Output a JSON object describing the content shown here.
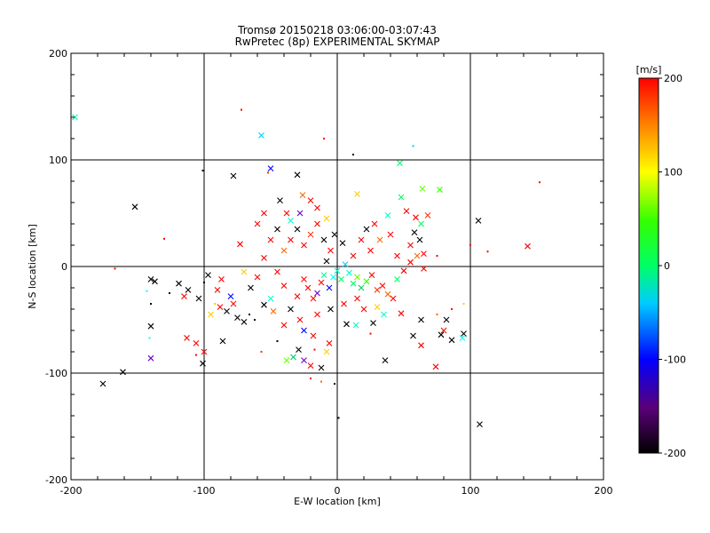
{
  "chart_data": {
    "type": "scatter",
    "title": "Tromsø 20150218 03:06:00-03:07:43",
    "subtitle": "RwPretec (8p) EXPERIMENTAL SKYMAP",
    "xlabel": "E-W location [km]",
    "ylabel": "N-S location [km]",
    "xlim": [
      -200,
      200
    ],
    "ylim": [
      -200,
      200
    ],
    "xticks": [
      "-200",
      "-100",
      "0",
      "100",
      "200"
    ],
    "yticks": [
      "-200",
      "-100",
      "0",
      "100",
      "200"
    ],
    "grid": "crosshair lines at ±100 and 0",
    "colorbar": {
      "label": "[m/s]",
      "range": [
        -200,
        200
      ],
      "ticks": [
        "-200",
        "-100",
        "0",
        "100",
        "200"
      ],
      "colormap": "black-purple-blue-cyan-green-yellow-red"
    },
    "points": [
      {
        "x": -197,
        "y": 140,
        "m": "x",
        "c": "#00ff99"
      },
      {
        "x": -57,
        "y": 123,
        "m": "x",
        "c": "#00ccff"
      },
      {
        "x": -72,
        "y": 147,
        "m": "dot",
        "c": "#ff0000"
      },
      {
        "x": 57,
        "y": 113,
        "m": "dot",
        "c": "#00ccff"
      },
      {
        "x": -50,
        "y": 92,
        "m": "x",
        "c": "#0000ff"
      },
      {
        "x": -30,
        "y": 86,
        "m": "x",
        "c": "#000000"
      },
      {
        "x": -78,
        "y": 85,
        "m": "x",
        "c": "#000000"
      },
      {
        "x": -101,
        "y": 90,
        "m": "dot",
        "c": "#000000"
      },
      {
        "x": -52,
        "y": 88,
        "m": "dot",
        "c": "#ff3300"
      },
      {
        "x": -10,
        "y": 120,
        "m": "dot",
        "c": "#ff0000"
      },
      {
        "x": 47,
        "y": 97,
        "m": "x",
        "c": "#00ff66"
      },
      {
        "x": 152,
        "y": 79,
        "m": "dot",
        "c": "#ff0000"
      },
      {
        "x": -152,
        "y": 56,
        "m": "x",
        "c": "#000000"
      },
      {
        "x": -43,
        "y": 62,
        "m": "x",
        "c": "#000000"
      },
      {
        "x": -26,
        "y": 67,
        "m": "x",
        "c": "#ff6600"
      },
      {
        "x": 15,
        "y": 68,
        "m": "x",
        "c": "#ffcc00"
      },
      {
        "x": 48,
        "y": 65,
        "m": "x",
        "c": "#00ff66"
      },
      {
        "x": 64,
        "y": 73,
        "m": "x",
        "c": "#66ff00"
      },
      {
        "x": 77,
        "y": 72,
        "m": "x",
        "c": "#33ff00"
      },
      {
        "x": 12,
        "y": 105,
        "m": "dot",
        "c": "#000000"
      },
      {
        "x": 106,
        "y": 43,
        "m": "x",
        "c": "#000000"
      },
      {
        "x": 143,
        "y": 19,
        "m": "x",
        "c": "#ff0000"
      },
      {
        "x": 113,
        "y": 14,
        "m": "dot",
        "c": "#ff0000"
      },
      {
        "x": -130,
        "y": 26,
        "m": "dot",
        "c": "#ff0000"
      },
      {
        "x": -73,
        "y": 21,
        "m": "x",
        "c": "#ff0000"
      },
      {
        "x": -167,
        "y": -2,
        "m": "dot",
        "c": "#ff0000"
      },
      {
        "x": -140,
        "y": -12,
        "m": "x",
        "c": "#000000"
      },
      {
        "x": -137,
        "y": -14,
        "m": "x",
        "c": "#000000"
      },
      {
        "x": -119,
        "y": -16,
        "m": "x",
        "c": "#000000"
      },
      {
        "x": -112,
        "y": -22,
        "m": "x",
        "c": "#000000"
      },
      {
        "x": -104,
        "y": -30,
        "m": "x",
        "c": "#000000"
      },
      {
        "x": -97,
        "y": -8,
        "m": "x",
        "c": "#000000"
      },
      {
        "x": -87,
        "y": -12,
        "m": "x",
        "c": "#ff0000"
      },
      {
        "x": -100,
        "y": -15,
        "m": "dot",
        "c": "#000000"
      },
      {
        "x": -126,
        "y": -25,
        "m": "dot",
        "c": "#000000"
      },
      {
        "x": -140,
        "y": -35,
        "m": "dot",
        "c": "#000000"
      },
      {
        "x": -143,
        "y": -23,
        "m": "dot",
        "c": "#00ffff"
      },
      {
        "x": -92,
        "y": -35,
        "m": "dot",
        "c": "#ffcc00"
      },
      {
        "x": -80,
        "y": -28,
        "m": "x",
        "c": "#0000ff"
      },
      {
        "x": -83,
        "y": -42,
        "m": "x",
        "c": "#000000"
      },
      {
        "x": -88,
        "y": -38,
        "m": "x",
        "c": "#ff0000"
      },
      {
        "x": -75,
        "y": -48,
        "m": "x",
        "c": "#000000"
      },
      {
        "x": -70,
        "y": -52,
        "m": "x",
        "c": "#000000"
      },
      {
        "x": -66,
        "y": -45,
        "m": "dot",
        "c": "#000000"
      },
      {
        "x": -62,
        "y": -50,
        "m": "dot",
        "c": "#000000"
      },
      {
        "x": -55,
        "y": -36,
        "m": "x",
        "c": "#000000"
      },
      {
        "x": -140,
        "y": -56,
        "m": "x",
        "c": "#000000"
      },
      {
        "x": -141,
        "y": -67,
        "m": "dot",
        "c": "#00ffff"
      },
      {
        "x": -113,
        "y": -67,
        "m": "x",
        "c": "#ff0000"
      },
      {
        "x": -106,
        "y": -72,
        "m": "x",
        "c": "#ff0000"
      },
      {
        "x": -86,
        "y": -70,
        "m": "x",
        "c": "#000000"
      },
      {
        "x": -100,
        "y": -80,
        "m": "x",
        "c": "#ff0000"
      },
      {
        "x": -140,
        "y": -86,
        "m": "x",
        "c": "#6600cc"
      },
      {
        "x": -101,
        "y": -91,
        "m": "x",
        "c": "#000000"
      },
      {
        "x": -161,
        "y": -99,
        "m": "x",
        "c": "#000000"
      },
      {
        "x": -176,
        "y": -110,
        "m": "x",
        "c": "#000000"
      },
      {
        "x": -106,
        "y": -83,
        "m": "dot",
        "c": "#ff0000"
      },
      {
        "x": -57,
        "y": -80,
        "m": "dot",
        "c": "#ff3300"
      },
      {
        "x": -45,
        "y": -70,
        "m": "dot",
        "c": "#000000"
      },
      {
        "x": -38,
        "y": -88,
        "m": "x",
        "c": "#66ff00"
      },
      {
        "x": -33,
        "y": -85,
        "m": "x",
        "c": "#00cc66"
      },
      {
        "x": -29,
        "y": -78,
        "m": "x",
        "c": "#000000"
      },
      {
        "x": -25,
        "y": -88,
        "m": "x",
        "c": "#6600cc"
      },
      {
        "x": -20,
        "y": -93,
        "m": "x",
        "c": "#ff0000"
      },
      {
        "x": -17,
        "y": -78,
        "m": "dot",
        "c": "#ff0000"
      },
      {
        "x": -12,
        "y": -95,
        "m": "x",
        "c": "#000000"
      },
      {
        "x": -8,
        "y": -80,
        "m": "x",
        "c": "#ffcc00"
      },
      {
        "x": -20,
        "y": -105,
        "m": "dot",
        "c": "#ff0000"
      },
      {
        "x": -2,
        "y": -110,
        "m": "dot",
        "c": "#000000"
      },
      {
        "x": 1,
        "y": -142,
        "m": "dot",
        "c": "#000000"
      },
      {
        "x": -12,
        "y": -108,
        "m": "dot",
        "c": "#ff6600"
      },
      {
        "x": -6,
        "y": -72,
        "m": "x",
        "c": "#ff0000"
      },
      {
        "x": 7,
        "y": -54,
        "m": "x",
        "c": "#000000"
      },
      {
        "x": 14,
        "y": -55,
        "m": "x",
        "c": "#00ffcc"
      },
      {
        "x": 25,
        "y": -63,
        "m": "dot",
        "c": "#ff0000"
      },
      {
        "x": 27,
        "y": -53,
        "m": "x",
        "c": "#000000"
      },
      {
        "x": 36,
        "y": -88,
        "m": "x",
        "c": "#000000"
      },
      {
        "x": 57,
        "y": -65,
        "m": "x",
        "c": "#000000"
      },
      {
        "x": 63,
        "y": -74,
        "m": "x",
        "c": "#ff0000"
      },
      {
        "x": 74,
        "y": -94,
        "m": "x",
        "c": "#ff0000"
      },
      {
        "x": 78,
        "y": -64,
        "m": "x",
        "c": "#000000"
      },
      {
        "x": 80,
        "y": -60,
        "m": "x",
        "c": "#ff0000"
      },
      {
        "x": 86,
        "y": -69,
        "m": "x",
        "c": "#000000"
      },
      {
        "x": 95,
        "y": -63,
        "m": "x",
        "c": "#000000"
      },
      {
        "x": 94,
        "y": -67,
        "m": "x",
        "c": "#00ffff"
      },
      {
        "x": 107,
        "y": -148,
        "m": "x",
        "c": "#000000"
      },
      {
        "x": 86,
        "y": -40,
        "m": "dot",
        "c": "#ff0000"
      },
      {
        "x": 82,
        "y": -50,
        "m": "x",
        "c": "#000000"
      },
      {
        "x": 63,
        "y": -50,
        "m": "x",
        "c": "#000000"
      },
      {
        "x": 75,
        "y": -45,
        "m": "dot",
        "c": "#ff6600"
      },
      {
        "x": 48,
        "y": -44,
        "m": "x",
        "c": "#ff0000"
      },
      {
        "x": 95,
        "y": -35,
        "m": "dot",
        "c": "#ffcc00"
      },
      {
        "x": 75,
        "y": 10,
        "m": "dot",
        "c": "#ff0000"
      },
      {
        "x": 100,
        "y": 20,
        "m": "dot",
        "c": "#ff0000"
      },
      {
        "x": -50,
        "y": -30,
        "m": "x",
        "c": "#00ffcc"
      },
      {
        "x": -40,
        "y": -18,
        "m": "x",
        "c": "#ff0000"
      },
      {
        "x": -35,
        "y": -40,
        "m": "x",
        "c": "#000000"
      },
      {
        "x": -30,
        "y": -28,
        "m": "x",
        "c": "#ff0000"
      },
      {
        "x": -25,
        "y": -12,
        "m": "x",
        "c": "#ff0000"
      },
      {
        "x": -22,
        "y": -20,
        "m": "x",
        "c": "#ff0000"
      },
      {
        "x": -18,
        "y": -30,
        "m": "x",
        "c": "#ff0000"
      },
      {
        "x": -15,
        "y": -25,
        "m": "x",
        "c": "#6600cc"
      },
      {
        "x": -12,
        "y": -15,
        "m": "x",
        "c": "#ff0000"
      },
      {
        "x": -10,
        "y": -8,
        "m": "x",
        "c": "#00ff99"
      },
      {
        "x": -8,
        "y": 5,
        "m": "x",
        "c": "#000000"
      },
      {
        "x": -6,
        "y": -20,
        "m": "x",
        "c": "#0000ff"
      },
      {
        "x": -3,
        "y": -10,
        "m": "x",
        "c": "#00ffff"
      },
      {
        "x": 0,
        "y": -4,
        "m": "x",
        "c": "#00ffcc"
      },
      {
        "x": 3,
        "y": -12,
        "m": "x",
        "c": "#00ff66"
      },
      {
        "x": 6,
        "y": 2,
        "m": "x",
        "c": "#00ccff"
      },
      {
        "x": 9,
        "y": -6,
        "m": "x",
        "c": "#00ffcc"
      },
      {
        "x": 12,
        "y": -16,
        "m": "x",
        "c": "#00ff66"
      },
      {
        "x": 15,
        "y": -10,
        "m": "x",
        "c": "#66ff00"
      },
      {
        "x": 18,
        "y": -20,
        "m": "x",
        "c": "#00cc66"
      },
      {
        "x": 22,
        "y": -14,
        "m": "x",
        "c": "#33ff00"
      },
      {
        "x": 26,
        "y": -8,
        "m": "x",
        "c": "#ff0000"
      },
      {
        "x": 30,
        "y": -22,
        "m": "x",
        "c": "#ff3300"
      },
      {
        "x": 34,
        "y": -18,
        "m": "x",
        "c": "#ff0000"
      },
      {
        "x": 38,
        "y": -26,
        "m": "x",
        "c": "#ff6600"
      },
      {
        "x": 42,
        "y": -30,
        "m": "x",
        "c": "#ff0000"
      },
      {
        "x": 45,
        "y": -12,
        "m": "x",
        "c": "#00ff66"
      },
      {
        "x": 50,
        "y": -4,
        "m": "x",
        "c": "#ff0000"
      },
      {
        "x": 55,
        "y": 4,
        "m": "x",
        "c": "#ff0000"
      },
      {
        "x": 60,
        "y": 10,
        "m": "x",
        "c": "#ff6600"
      },
      {
        "x": 65,
        "y": -2,
        "m": "x",
        "c": "#ff0000"
      },
      {
        "x": -60,
        "y": -10,
        "m": "x",
        "c": "#ff0000"
      },
      {
        "x": -65,
        "y": -20,
        "m": "x",
        "c": "#000000"
      },
      {
        "x": -70,
        "y": -5,
        "m": "x",
        "c": "#ffcc00"
      },
      {
        "x": -45,
        "y": -5,
        "m": "x",
        "c": "#ff0000"
      },
      {
        "x": -55,
        "y": 8,
        "m": "x",
        "c": "#ff0000"
      },
      {
        "x": -40,
        "y": 15,
        "m": "x",
        "c": "#ff6600"
      },
      {
        "x": -35,
        "y": 25,
        "m": "x",
        "c": "#ff0000"
      },
      {
        "x": -30,
        "y": 35,
        "m": "x",
        "c": "#000000"
      },
      {
        "x": -25,
        "y": 20,
        "m": "x",
        "c": "#ff0000"
      },
      {
        "x": -20,
        "y": 30,
        "m": "x",
        "c": "#ff3300"
      },
      {
        "x": -15,
        "y": 40,
        "m": "x",
        "c": "#ff0000"
      },
      {
        "x": -10,
        "y": 25,
        "m": "x",
        "c": "#000000"
      },
      {
        "x": -5,
        "y": 15,
        "m": "x",
        "c": "#ff0000"
      },
      {
        "x": -2,
        "y": 30,
        "m": "x",
        "c": "#000000"
      },
      {
        "x": 4,
        "y": 22,
        "m": "x",
        "c": "#000000"
      },
      {
        "x": -35,
        "y": 43,
        "m": "x",
        "c": "#00ffcc"
      },
      {
        "x": -28,
        "y": 50,
        "m": "x",
        "c": "#6600cc"
      },
      {
        "x": -15,
        "y": 55,
        "m": "x",
        "c": "#ff0000"
      },
      {
        "x": -20,
        "y": 62,
        "m": "x",
        "c": "#ff0000"
      },
      {
        "x": -8,
        "y": 45,
        "m": "x",
        "c": "#ffcc00"
      },
      {
        "x": -38,
        "y": 50,
        "m": "x",
        "c": "#ff0000"
      },
      {
        "x": -45,
        "y": 35,
        "m": "x",
        "c": "#000000"
      },
      {
        "x": -60,
        "y": 40,
        "m": "x",
        "c": "#ff0000"
      },
      {
        "x": -50,
        "y": 25,
        "m": "x",
        "c": "#ff0000"
      },
      {
        "x": -55,
        "y": 50,
        "m": "x",
        "c": "#ff0000"
      },
      {
        "x": 38,
        "y": 48,
        "m": "x",
        "c": "#00ffcc"
      },
      {
        "x": 52,
        "y": 52,
        "m": "x",
        "c": "#ff0000"
      },
      {
        "x": 59,
        "y": 46,
        "m": "x",
        "c": "#ff0000"
      },
      {
        "x": 63,
        "y": 40,
        "m": "x",
        "c": "#00ff66"
      },
      {
        "x": 68,
        "y": 48,
        "m": "x",
        "c": "#ff3300"
      },
      {
        "x": 58,
        "y": 32,
        "m": "x",
        "c": "#000000"
      },
      {
        "x": 62,
        "y": 25,
        "m": "x",
        "c": "#000000"
      },
      {
        "x": 65,
        "y": 12,
        "m": "x",
        "c": "#ff0000"
      },
      {
        "x": 55,
        "y": 20,
        "m": "x",
        "c": "#ff0000"
      },
      {
        "x": 45,
        "y": 10,
        "m": "x",
        "c": "#ff0000"
      },
      {
        "x": 40,
        "y": 30,
        "m": "x",
        "c": "#ff0000"
      },
      {
        "x": 32,
        "y": 25,
        "m": "x",
        "c": "#ff6600"
      },
      {
        "x": 28,
        "y": 40,
        "m": "x",
        "c": "#ff0000"
      },
      {
        "x": 22,
        "y": 35,
        "m": "x",
        "c": "#000000"
      },
      {
        "x": 25,
        "y": 15,
        "m": "x",
        "c": "#ff0000"
      },
      {
        "x": 18,
        "y": 25,
        "m": "x",
        "c": "#ff0000"
      },
      {
        "x": 12,
        "y": 10,
        "m": "x",
        "c": "#ff0000"
      },
      {
        "x": 5,
        "y": -35,
        "m": "x",
        "c": "#ff0000"
      },
      {
        "x": -5,
        "y": -40,
        "m": "x",
        "c": "#000000"
      },
      {
        "x": -15,
        "y": -45,
        "m": "x",
        "c": "#ff0000"
      },
      {
        "x": -28,
        "y": -50,
        "m": "x",
        "c": "#ff0000"
      },
      {
        "x": -40,
        "y": -55,
        "m": "x",
        "c": "#ff0000"
      },
      {
        "x": -48,
        "y": -42,
        "m": "x",
        "c": "#ff6600"
      },
      {
        "x": -25,
        "y": -60,
        "m": "x",
        "c": "#0000ff"
      },
      {
        "x": -18,
        "y": -65,
        "m": "x",
        "c": "#ff0000"
      },
      {
        "x": 20,
        "y": -40,
        "m": "x",
        "c": "#ff0000"
      },
      {
        "x": 30,
        "y": -38,
        "m": "x",
        "c": "#ffcc00"
      },
      {
        "x": 35,
        "y": -45,
        "m": "x",
        "c": "#00ffcc"
      },
      {
        "x": 15,
        "y": -30,
        "m": "x",
        "c": "#ff0000"
      },
      {
        "x": -90,
        "y": -22,
        "m": "x",
        "c": "#ff0000"
      },
      {
        "x": -115,
        "y": -28,
        "m": "x",
        "c": "#ff0000"
      },
      {
        "x": -95,
        "y": -45,
        "m": "x",
        "c": "#ffcc00"
      },
      {
        "x": -78,
        "y": -35,
        "m": "x",
        "c": "#ff0000"
      }
    ]
  }
}
